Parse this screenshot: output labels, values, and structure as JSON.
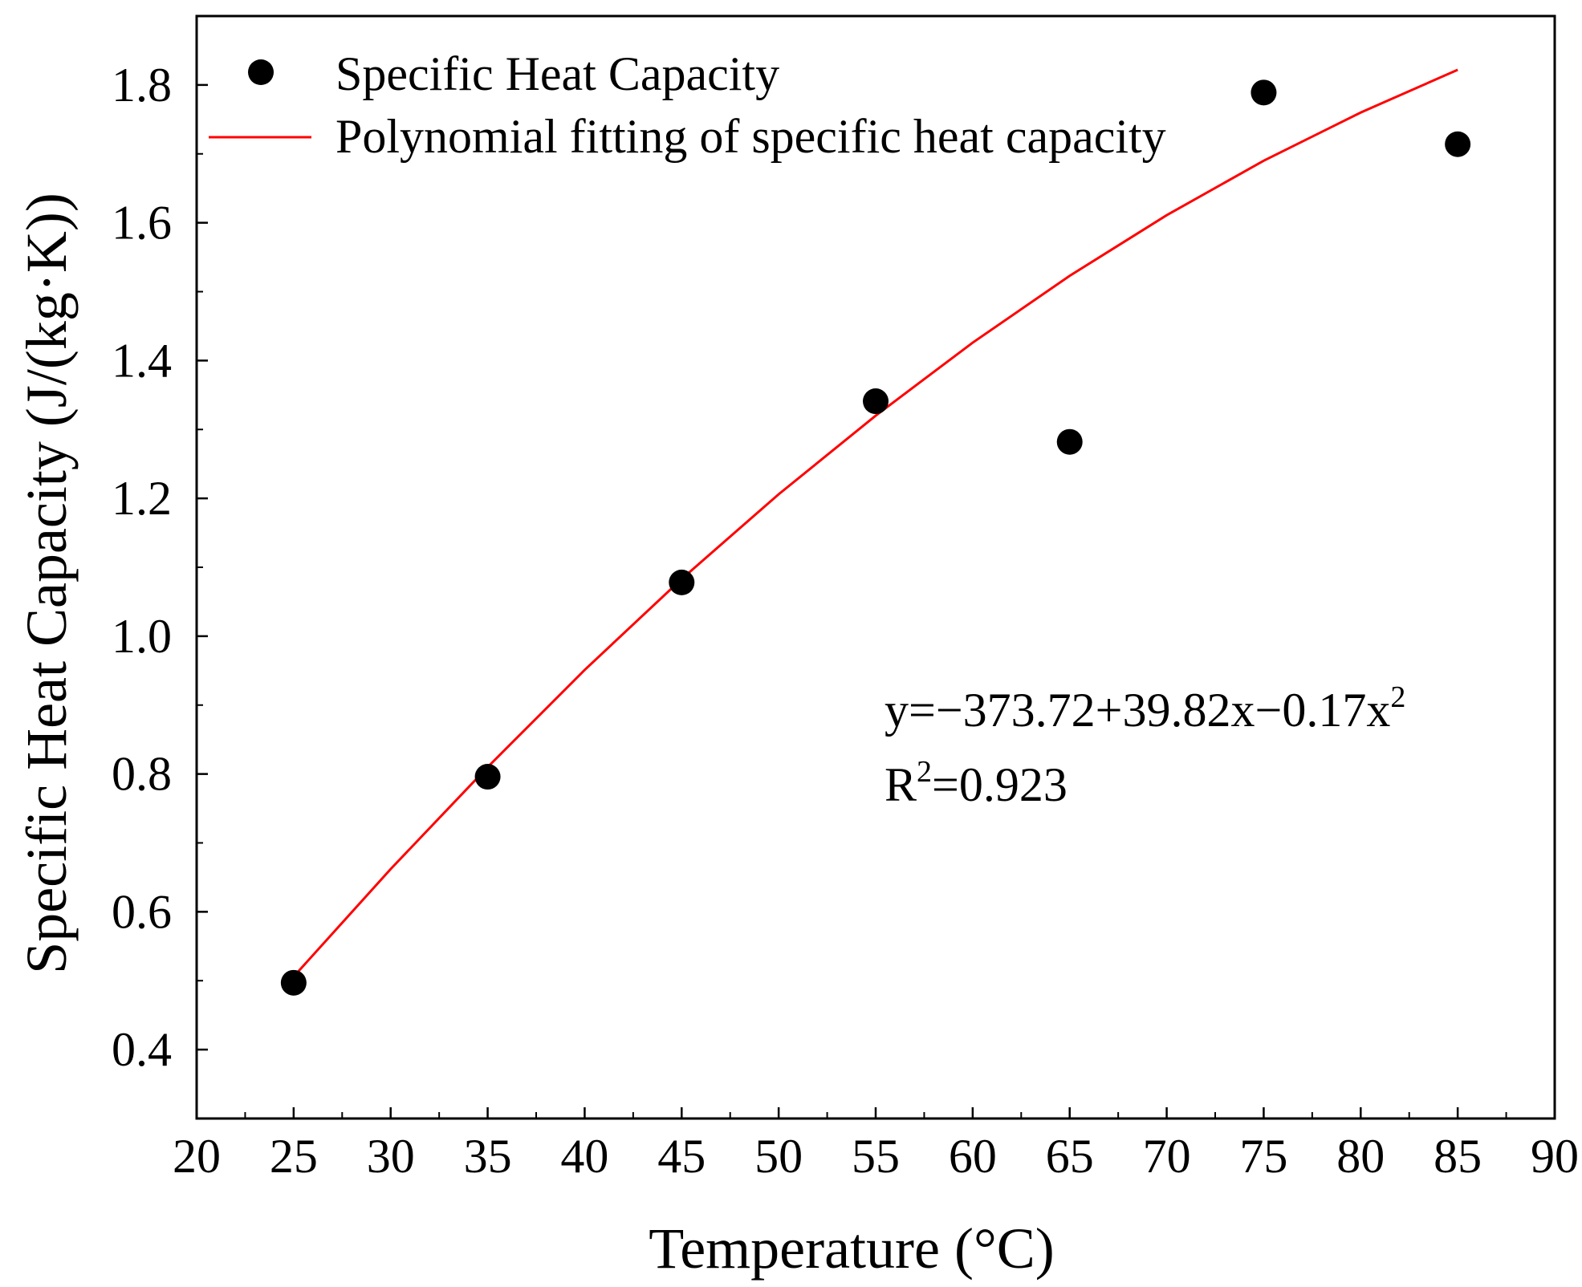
{
  "chart_data": {
    "type": "scatter",
    "title": "",
    "xlabel": "Temperature (°C)",
    "ylabel": "Specific Heat Capacity (J/(kg·K))",
    "xlim": [
      20,
      90
    ],
    "ylim": [
      0.3,
      1.9
    ],
    "x_ticks": [
      20,
      25,
      30,
      35,
      40,
      45,
      50,
      55,
      60,
      65,
      70,
      75,
      80,
      85,
      90
    ],
    "y_ticks": [
      0.4,
      0.6,
      0.8,
      1.0,
      1.2,
      1.4,
      1.6,
      1.8
    ],
    "y_tick_labels": [
      "0.4",
      "0.6",
      "0.8",
      "1.0",
      "1.2",
      "1.4",
      "1.6",
      "1.8"
    ],
    "legend_position": "top-left",
    "series": [
      {
        "name": "Specific Heat Capacity",
        "kind": "scatter",
        "color": "#000000",
        "x": [
          25,
          35,
          45,
          55,
          65,
          75,
          85
        ],
        "y": [
          0.497,
          0.796,
          1.078,
          1.341,
          1.282,
          1.789,
          1.714
        ]
      },
      {
        "name": "Polynomial fitting of specific heat capacity",
        "kind": "line",
        "color": "#ff0000",
        "x": [
          25,
          30,
          35,
          40,
          45,
          50,
          55,
          60,
          65,
          70,
          75,
          80,
          85
        ],
        "y": [
          0.506,
          0.662,
          0.81,
          0.951,
          1.083,
          1.206,
          1.32,
          1.426,
          1.523,
          1.611,
          1.69,
          1.76,
          1.822
        ]
      }
    ],
    "annotations": {
      "equation_prefix": "y=−373.72+39.82x−0.17x",
      "equation_superscript": "2",
      "r2_prefix": "R",
      "r2_superscript": "2",
      "r2_suffix": "=0.923"
    }
  }
}
